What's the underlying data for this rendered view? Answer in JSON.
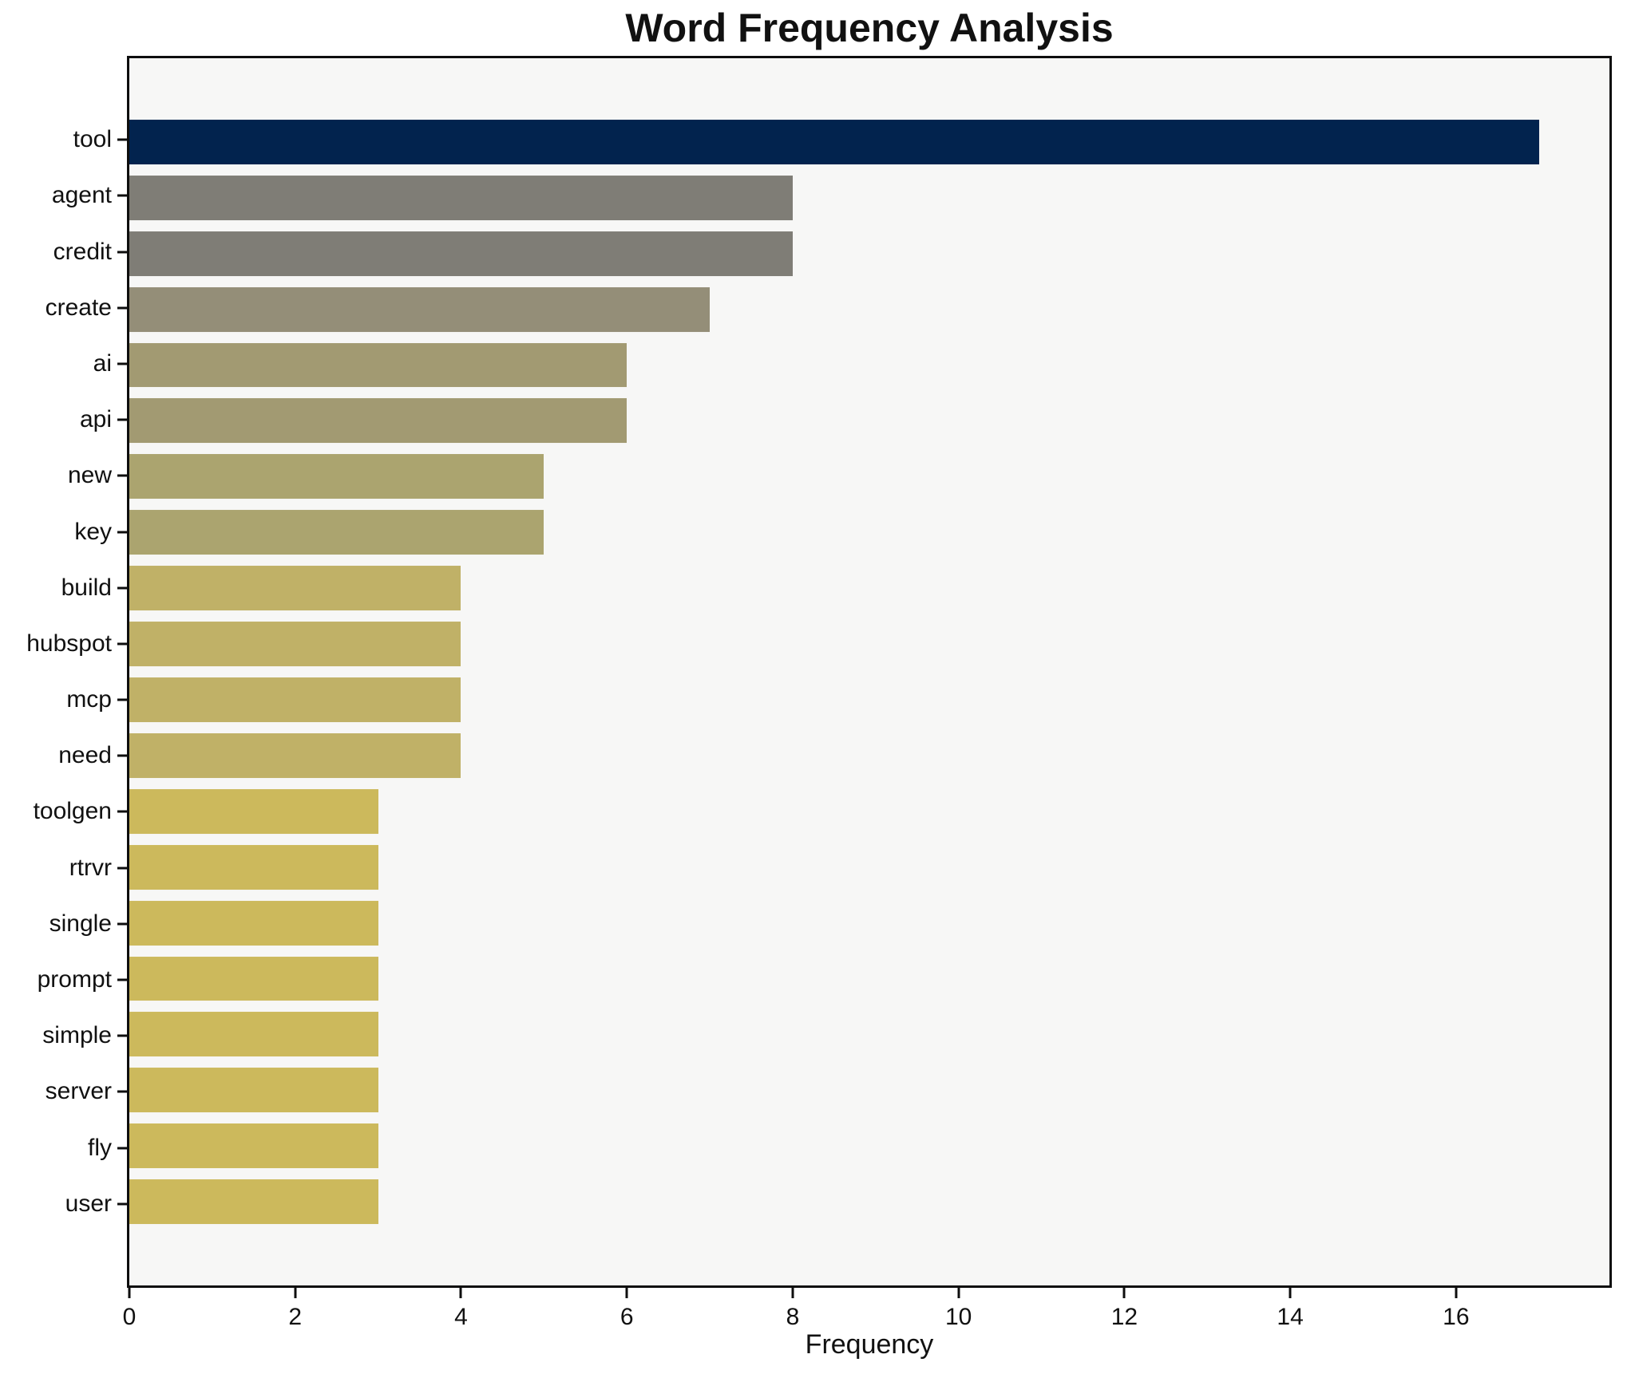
{
  "figure": {
    "background": "#ffffff",
    "plot_background": "#f7f7f6",
    "frame_color": "#0e0e0e",
    "text_color": "#111111"
  },
  "chart_data": {
    "type": "bar",
    "orientation": "horizontal",
    "title": "Word Frequency Analysis",
    "xlabel": "Frequency",
    "ylabel": "",
    "categories": [
      "tool",
      "agent",
      "credit",
      "create",
      "ai",
      "api",
      "new",
      "key",
      "build",
      "hubspot",
      "mcp",
      "need",
      "toolgen",
      "rtrvr",
      "single",
      "prompt",
      "simple",
      "server",
      "fly",
      "user"
    ],
    "values": [
      17,
      8,
      8,
      7,
      6,
      6,
      5,
      5,
      4,
      4,
      4,
      4,
      3,
      3,
      3,
      3,
      3,
      3,
      3,
      3
    ],
    "bar_colors": [
      "#02234e",
      "#7f7d76",
      "#7f7d76",
      "#948e78",
      "#a29a72",
      "#a29a72",
      "#aba46f",
      "#aba46f",
      "#c0b167",
      "#c0b167",
      "#c0b167",
      "#c0b167",
      "#ccb95c",
      "#ccb95c",
      "#ccb95c",
      "#ccb95c",
      "#ccb95c",
      "#ccb95c",
      "#ccb95c",
      "#ccb95c"
    ],
    "xticks": [
      0,
      2,
      4,
      6,
      8,
      10,
      12,
      14,
      16
    ],
    "xlim": [
      0,
      17.85
    ],
    "bar_height_frac": 0.8,
    "grid": false,
    "legend_position": "none"
  }
}
